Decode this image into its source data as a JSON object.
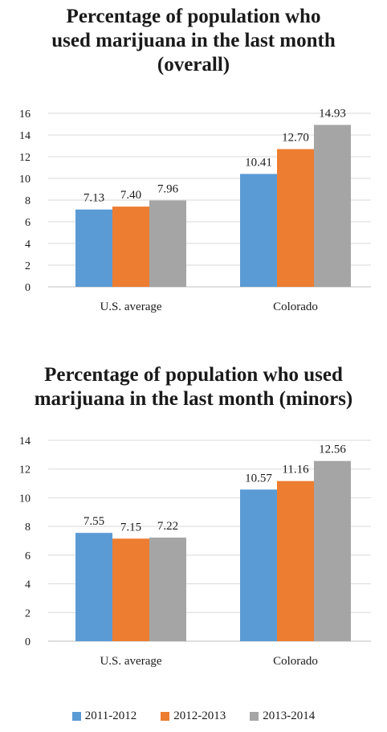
{
  "colors": {
    "2011-2012": "#5b9bd5",
    "2012-2013": "#ed7d31",
    "2013-2014": "#a5a5a5",
    "grid": "#d9d9d9",
    "axis": "#bfbfbf"
  },
  "legend": {
    "placement": "bottom",
    "items": [
      "2011-2012",
      "2012-2013",
      "2013-2014"
    ]
  },
  "chart_data": [
    {
      "type": "bar",
      "title_lines": [
        "Percentage of population who",
        "used marijuana in the last month",
        "(overall)"
      ],
      "categories": [
        "U.S. average",
        "Colorado"
      ],
      "series": [
        {
          "name": "2011-2012",
          "values": [
            7.13,
            10.41
          ],
          "labels": [
            "7.13",
            "10.41"
          ]
        },
        {
          "name": "2012-2013",
          "values": [
            7.4,
            12.7
          ],
          "labels": [
            "7.40",
            "12.70"
          ]
        },
        {
          "name": "2013-2014",
          "values": [
            7.96,
            14.93
          ],
          "labels": [
            "7.96",
            "14.93"
          ]
        }
      ],
      "ylim": [
        0,
        16
      ],
      "yticks": [
        0,
        2,
        4,
        6,
        8,
        10,
        12,
        14,
        16
      ],
      "grid": true
    },
    {
      "type": "bar",
      "title_lines": [
        "Percentage of population who used",
        "marijuana in the last month (minors)"
      ],
      "categories": [
        "U.S. average",
        "Colorado"
      ],
      "series": [
        {
          "name": "2011-2012",
          "values": [
            7.55,
            10.57
          ],
          "labels": [
            "7.55",
            "10.57"
          ]
        },
        {
          "name": "2012-2013",
          "values": [
            7.15,
            11.16
          ],
          "labels": [
            "7.15",
            "11.16"
          ]
        },
        {
          "name": "2013-2014",
          "values": [
            7.22,
            12.56
          ],
          "labels": [
            "7.22",
            "12.56"
          ]
        }
      ],
      "ylim": [
        0,
        14
      ],
      "yticks": [
        0,
        2,
        4,
        6,
        8,
        10,
        12,
        14
      ],
      "grid": true
    }
  ]
}
